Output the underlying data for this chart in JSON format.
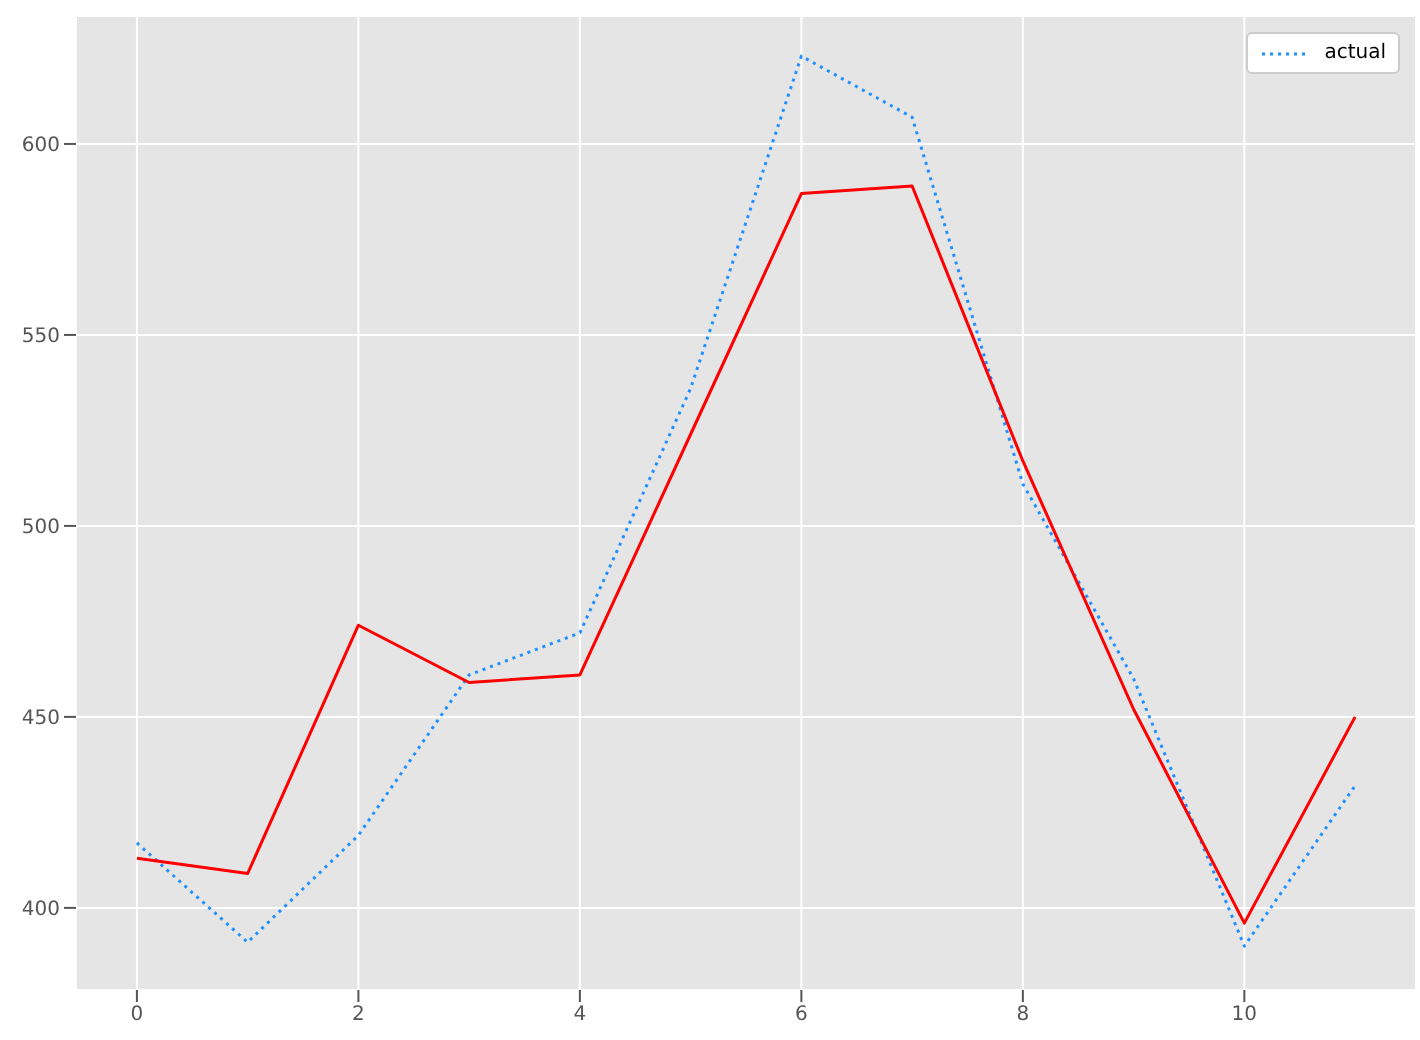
{
  "chart_data": {
    "type": "line",
    "x": [
      0,
      1,
      2,
      3,
      4,
      5,
      6,
      7,
      8,
      9,
      10,
      11
    ],
    "series": [
      {
        "name": "actual",
        "color": "#1e90ff",
        "line_style": "dotted",
        "values": [
          417,
          391,
          419,
          461,
          472,
          536,
          623,
          607,
          511,
          460,
          390,
          432
        ]
      },
      {
        "color": "#ff0000",
        "line_style": "solid",
        "values": [
          413,
          409,
          474,
          459,
          461,
          524,
          587,
          589,
          517,
          452,
          396,
          450
        ]
      }
    ],
    "xlim": [
      -0.55,
      11.55
    ],
    "xticks": [
      0,
      2,
      4,
      6,
      8,
      10
    ],
    "ylim": [
      378.5,
      633.5
    ],
    "yticks": [
      400,
      450,
      500,
      550,
      600
    ],
    "grid": true,
    "legend": "top right",
    "marker": "none"
  }
}
